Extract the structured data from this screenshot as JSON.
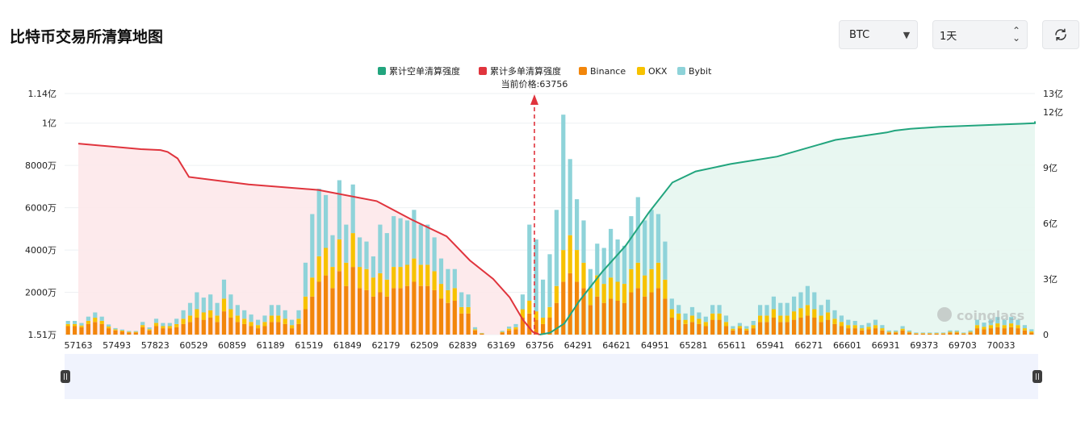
{
  "page": {
    "title": "比特币交易所清算地图"
  },
  "controls": {
    "coin": "BTC",
    "range": "1天",
    "refresh_icon": "refresh-icon"
  },
  "colors": {
    "short_line": "#22a57e",
    "long_line": "#e0343d",
    "binance": "#f2860b",
    "okx": "#f7c200",
    "bybit": "#8ed3d9",
    "long_fill": "#fde8ea",
    "short_fill": "#e5f6f0",
    "price_line": "#e0343d"
  },
  "watermark": "coinglass",
  "chart_data": {
    "type": "bar",
    "legend": [
      "累计空单清算强度",
      "累计多单清算强度",
      "Binance",
      "OKX",
      "Bybit"
    ],
    "legend_position": "top-center",
    "current_price_label": "当前价格:63756",
    "current_price": 63756,
    "x_tick_labels": [
      "57163",
      "57493",
      "57823",
      "60529",
      "60859",
      "61189",
      "61519",
      "61849",
      "62179",
      "62509",
      "62839",
      "63169",
      "63756",
      "64291",
      "64621",
      "64951",
      "65281",
      "65611",
      "65941",
      "66271",
      "66601",
      "66931",
      "69373",
      "69703",
      "70033"
    ],
    "y_left_ticks": [
      "1.51万",
      "2000万",
      "4000万",
      "6000万",
      "8000万",
      "1亿",
      "1.14亿"
    ],
    "y_left_range": [
      15100,
      114000000
    ],
    "y_right_ticks": [
      "0",
      "3亿",
      "6亿",
      "9亿",
      "12亿",
      "13亿"
    ],
    "y_right_range": [
      0,
      1300000000
    ],
    "bars_binance_wan": [
      400,
      400,
      350,
      500,
      600,
      500,
      300,
      200,
      150,
      100,
      100,
      350,
      200,
      400,
      300,
      300,
      350,
      500,
      600,
      800,
      700,
      800,
      600,
      1100,
      800,
      600,
      500,
      400,
      300,
      400,
      600,
      600,
      500,
      300,
      500,
      1200,
      1800,
      2500,
      2800,
      2200,
      3000,
      2300,
      3200,
      2200,
      2100,
      1800,
      2000,
      1800,
      2200,
      2200,
      2300,
      2500,
      2300,
      2300,
      2100,
      1700,
      1500,
      1600,
      1000,
      1000,
      200,
      50,
      0,
      0,
      100,
      200,
      250,
      800,
      1000,
      700,
      500,
      800,
      1500,
      2500,
      2900,
      2500,
      2200,
      1400,
      1800,
      1500,
      1700,
      1600,
      1500,
      2000,
      2200,
      1800,
      2000,
      2200,
      1700,
      800,
      700,
      500,
      600,
      500,
      400,
      700,
      700,
      400,
      200,
      300,
      200,
      300,
      600,
      600,
      800,
      600,
      600,
      700,
      800,
      900,
      800,
      600,
      700,
      500,
      400,
      300,
      300,
      200,
      250,
      300,
      200,
      100,
      100,
      200,
      100,
      50,
      50,
      50,
      50,
      50,
      100,
      100,
      50,
      100,
      300,
      250,
      300,
      350,
      300,
      350,
      300,
      200,
      100
    ],
    "bars_okx_wan": [
      100,
      100,
      80,
      150,
      200,
      150,
      80,
      50,
      40,
      30,
      30,
      100,
      60,
      150,
      100,
      100,
      150,
      250,
      300,
      400,
      350,
      350,
      300,
      600,
      400,
      300,
      250,
      200,
      150,
      200,
      300,
      300,
      250,
      150,
      250,
      600,
      900,
      1200,
      1300,
      1000,
      1500,
      1100,
      1600,
      1000,
      1000,
      900,
      900,
      800,
      1000,
      1000,
      1000,
      1100,
      1000,
      1000,
      900,
      700,
      600,
      600,
      300,
      300,
      50,
      10,
      0,
      0,
      30,
      80,
      100,
      400,
      600,
      400,
      300,
      500,
      800,
      1500,
      1800,
      1500,
      1200,
      800,
      1000,
      900,
      1000,
      900,
      900,
      1100,
      1200,
      1000,
      1100,
      1200,
      900,
      400,
      300,
      200,
      300,
      250,
      200,
      300,
      300,
      200,
      80,
      100,
      80,
      150,
      300,
      300,
      400,
      300,
      300,
      400,
      450,
      500,
      400,
      300,
      350,
      250,
      200,
      150,
      150,
      100,
      120,
      150,
      100,
      40,
      40,
      80,
      40,
      20,
      20,
      20,
      20,
      20,
      40,
      40,
      20,
      40,
      150,
      120,
      150,
      180,
      150,
      180,
      150,
      100,
      50
    ],
    "bars_bybit_wan": [
      150,
      150,
      120,
      200,
      250,
      200,
      100,
      60,
      50,
      40,
      40,
      150,
      80,
      200,
      150,
      150,
      250,
      400,
      600,
      800,
      700,
      750,
      600,
      900,
      700,
      500,
      400,
      350,
      250,
      300,
      500,
      500,
      400,
      250,
      400,
      1600,
      3000,
      3200,
      2500,
      1500,
      2800,
      1800,
      2300,
      1400,
      1300,
      1000,
      2300,
      2200,
      2400,
      2300,
      2100,
      2300,
      1900,
      1900,
      1600,
      1200,
      1000,
      900,
      700,
      600,
      100,
      20,
      0,
      0,
      50,
      100,
      150,
      700,
      3600,
      3400,
      1800,
      2500,
      3600,
      6400,
      3600,
      2400,
      2000,
      900,
      1500,
      1700,
      2300,
      2000,
      1800,
      2500,
      3100,
      2600,
      2800,
      2300,
      1800,
      500,
      400,
      300,
      400,
      300,
      250,
      400,
      400,
      300,
      120,
      150,
      120,
      200,
      500,
      500,
      600,
      600,
      600,
      700,
      750,
      900,
      800,
      500,
      600,
      400,
      300,
      250,
      200,
      150,
      180,
      250,
      150,
      60,
      60,
      120,
      60,
      30,
      30,
      30,
      30,
      30,
      60,
      60,
      30,
      60,
      250,
      200,
      250,
      300,
      250,
      300,
      250,
      150,
      100
    ],
    "long_curve_yi": [
      [
        57163,
        10.3
      ],
      [
        57700,
        10.0
      ],
      [
        58200,
        9.95
      ],
      [
        58700,
        9.85
      ],
      [
        59400,
        9.5
      ],
      [
        60200,
        8.5
      ],
      [
        61000,
        8.1
      ],
      [
        61600,
        7.8
      ],
      [
        62100,
        7.2
      ],
      [
        62400,
        6.2
      ],
      [
        62700,
        5.3
      ],
      [
        62900,
        4.0
      ],
      [
        63100,
        3.0
      ],
      [
        63300,
        2.0
      ],
      [
        63500,
        0.8
      ],
      [
        63650,
        0.15
      ],
      [
        63756,
        0.0
      ]
    ],
    "short_curve_yi": [
      [
        63756,
        0.0
      ],
      [
        63900,
        0.1
      ],
      [
        64100,
        0.6
      ],
      [
        64300,
        1.8
      ],
      [
        64500,
        3.4
      ],
      [
        64700,
        4.8
      ],
      [
        64900,
        6.6
      ],
      [
        65100,
        8.2
      ],
      [
        65300,
        8.8
      ],
      [
        65600,
        9.2
      ],
      [
        66000,
        9.6
      ],
      [
        66500,
        10.5
      ],
      [
        67000,
        10.9
      ],
      [
        67500,
        11.0
      ],
      [
        68500,
        11.1
      ],
      [
        69500,
        11.2
      ],
      [
        70400,
        11.4
      ],
      [
        70800,
        11.5
      ]
    ]
  }
}
